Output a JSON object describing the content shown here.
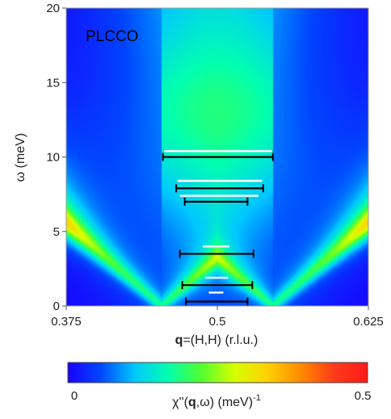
{
  "chart_data": {
    "type": "heatmap",
    "panel_label": "PLCCO",
    "xlabel": {
      "bold": "q",
      "rest": "=(H,H) (r.l.u.)"
    },
    "ylabel": "ω (meV)",
    "xlim": [
      0.375,
      0.625
    ],
    "ylim": [
      0,
      20
    ],
    "x_ticks": [
      {
        "value": 0.375,
        "label": "0.375"
      },
      {
        "value": 0.5,
        "label": "0.5"
      },
      {
        "value": 0.625,
        "label": "0.625"
      }
    ],
    "y_ticks": [
      {
        "value": 0,
        "label": "0"
      },
      {
        "value": 5,
        "label": "5"
      },
      {
        "value": 10,
        "label": "10"
      },
      {
        "value": 15,
        "label": "15"
      },
      {
        "value": 20,
        "label": "20"
      }
    ],
    "colorbar": {
      "min": 0,
      "max": 0.5,
      "min_label": "0",
      "max_label": "0.5",
      "label_prefix": "χ''(",
      "label_bold": "q",
      "label_suffix": ",ω) (meV)",
      "label_exponent": "-1",
      "colormap": [
        "#1a00ff",
        "#0047ff",
        "#00c8ff",
        "#00ffb0",
        "#50ff30",
        "#d8ff00",
        "#ffd000",
        "#ff8a00",
        "#ff3a1a",
        "#ff1a1a"
      ]
    },
    "dispersion": {
      "q0": 0.5,
      "incommensurate_delta": 0.046,
      "spin_wave_velocity_rlu_per_meV": 0.0142
    },
    "black_error_bars": [
      {
        "omega": 10.0,
        "x_low": 0.455,
        "x_high": 0.546
      },
      {
        "omega": 7.9,
        "x_low": 0.466,
        "x_high": 0.538
      },
      {
        "omega": 7.0,
        "x_low": 0.473,
        "x_high": 0.525
      },
      {
        "omega": 3.5,
        "x_low": 0.469,
        "x_high": 0.53
      },
      {
        "omega": 1.4,
        "x_low": 0.471,
        "x_high": 0.529
      },
      {
        "omega": 0.3,
        "x_low": 0.474,
        "x_high": 0.525
      }
    ],
    "white_lines": [
      {
        "omega": 10.4,
        "x_low": 0.456,
        "x_high": 0.545
      },
      {
        "omega": 8.4,
        "x_low": 0.467,
        "x_high": 0.537
      },
      {
        "omega": 7.4,
        "x_low": 0.469,
        "x_high": 0.534
      },
      {
        "omega": 4.0,
        "x_low": 0.488,
        "x_high": 0.51
      },
      {
        "omega": 1.9,
        "x_low": 0.49,
        "x_high": 0.509
      },
      {
        "omega": 0.9,
        "x_low": 0.493,
        "x_high": 0.505
      }
    ]
  }
}
